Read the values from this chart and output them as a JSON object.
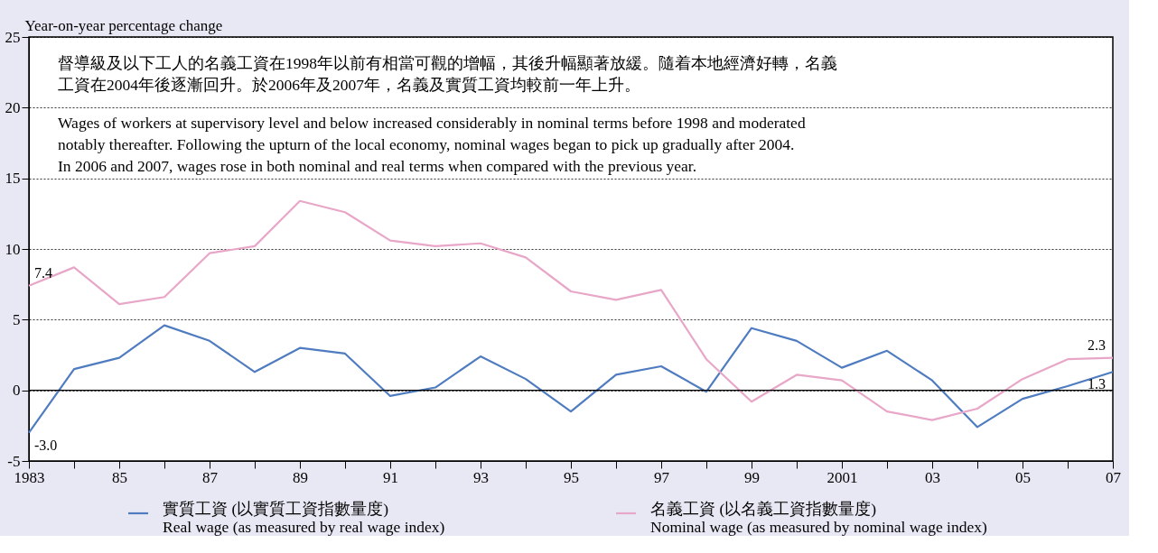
{
  "chart_data": {
    "type": "line",
    "ylabel": "Year-on-year percentage change",
    "annotations": [
      "督導級及以下工人的名義工資在1998年以前有相當可觀的增幅，其後升幅顯著放緩。隨着本地經濟好轉，名義",
      "工資在2004年後逐漸回升。於2006年及2007年，名義及實質工資均較前一年上升。",
      "Wages of workers at supervisory level and below increased considerably in nominal terms before 1998 and moderated",
      "notably thereafter.  Following the upturn of the local economy, nominal wages began to pick up gradually after 2004.",
      "In 2006 and 2007, wages rose in both nominal and real terms when compared with the previous year."
    ],
    "x": [
      1983,
      1984,
      1985,
      1986,
      1987,
      1988,
      1989,
      1990,
      1991,
      1992,
      1993,
      1994,
      1995,
      1996,
      1997,
      1998,
      1999,
      2000,
      2001,
      2002,
      2003,
      2004,
      2005,
      2006,
      2007
    ],
    "series": [
      {
        "name": "實質工資 (以實質工資指數量度)\nReal wage (as measured by real wage index)",
        "color": "#4f7cc0",
        "values": [
          -3.0,
          1.5,
          2.3,
          4.6,
          3.5,
          1.3,
          3.0,
          2.6,
          -0.4,
          0.2,
          2.4,
          0.8,
          -1.5,
          1.1,
          1.7,
          -0.1,
          4.4,
          3.5,
          1.6,
          2.8,
          0.7,
          -2.6,
          -0.6,
          0.3,
          1.3
        ],
        "value_labels": [
          "-3.0",
          null,
          null,
          null,
          null,
          null,
          null,
          null,
          null,
          null,
          null,
          null,
          null,
          null,
          null,
          null,
          null,
          null,
          null,
          null,
          null,
          null,
          null,
          null,
          "1.3"
        ]
      },
      {
        "name": "名義工資 (以名義工資指數量度)\nNominal wage (as measured by nominal wage index)",
        "color": "#e8a6c8",
        "values": [
          7.4,
          8.7,
          6.1,
          6.6,
          9.7,
          10.2,
          13.4,
          12.6,
          10.6,
          10.2,
          10.4,
          9.4,
          7.0,
          6.4,
          7.1,
          2.2,
          -0.8,
          1.1,
          0.7,
          -1.5,
          -2.1,
          -1.3,
          0.8,
          2.2,
          2.3
        ],
        "value_labels": [
          "7.4",
          null,
          null,
          null,
          null,
          null,
          null,
          null,
          null,
          null,
          null,
          null,
          null,
          null,
          null,
          null,
          null,
          null,
          null,
          null,
          null,
          null,
          null,
          null,
          "2.3"
        ]
      }
    ],
    "xlim": [
      1983,
      2007
    ],
    "xticks": [
      {
        "value": 1983,
        "label": "1983"
      },
      {
        "value": 1984,
        "label": null
      },
      {
        "value": 1985,
        "label": "85"
      },
      {
        "value": 1986,
        "label": null
      },
      {
        "value": 1987,
        "label": "87"
      },
      {
        "value": 1988,
        "label": null
      },
      {
        "value": 1989,
        "label": "89"
      },
      {
        "value": 1990,
        "label": null
      },
      {
        "value": 1991,
        "label": "91"
      },
      {
        "value": 1992,
        "label": null
      },
      {
        "value": 1993,
        "label": "93"
      },
      {
        "value": 1994,
        "label": null
      },
      {
        "value": 1995,
        "label": "95"
      },
      {
        "value": 1996,
        "label": null
      },
      {
        "value": 1997,
        "label": "97"
      },
      {
        "value": 1998,
        "label": null
      },
      {
        "value": 1999,
        "label": "99"
      },
      {
        "value": 2000,
        "label": null
      },
      {
        "value": 2001,
        "label": "2001"
      },
      {
        "value": 2002,
        "label": null
      },
      {
        "value": 2003,
        "label": "03"
      },
      {
        "value": 2004,
        "label": null
      },
      {
        "value": 2005,
        "label": "05"
      },
      {
        "value": 2006,
        "label": null
      },
      {
        "value": 2007,
        "label": "07"
      }
    ],
    "ylim": [
      -5,
      25
    ],
    "yticks": [
      -5,
      0,
      5,
      10,
      15,
      20,
      25
    ],
    "ref_lines": [
      {
        "axis": "y",
        "value": 0
      }
    ],
    "grid": "y",
    "legend": "bottom",
    "marker": "none",
    "line_style": "solid"
  }
}
